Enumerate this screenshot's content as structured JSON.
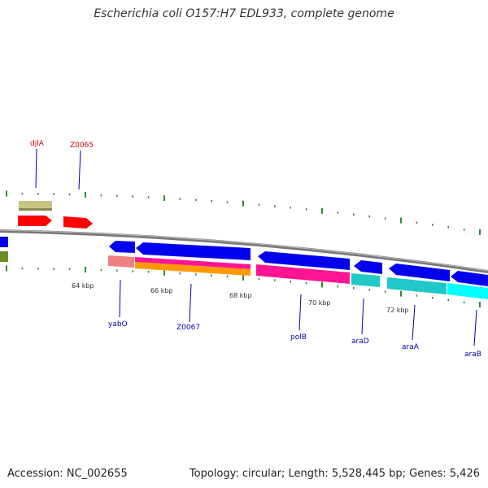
{
  "title": "Escherichia coli O157:H7 EDL933, complete genome",
  "footer": {
    "accession": "Accession: NC_002655",
    "summary": "Topology: circular; Length: 5,528,445 bp; Genes: 5,426"
  },
  "colors": {
    "backbone": "#808080",
    "tick": "#2e8b2e",
    "top_label": "#cc0000",
    "bottom_label": "#0000aa",
    "red_gene": "#ff0000",
    "blue_gene": "#0000ee",
    "khaki": "#b8b56a",
    "olive": "#6b8e23",
    "pink": "#ff1493",
    "salmon": "#f08080",
    "orange": "#ff9900",
    "teal": "#20c0c0",
    "cyan": "#00ffff"
  },
  "ticks": [
    "64 kbp",
    "66 kbp",
    "68 kbp",
    "70 kbp",
    "72 kbp"
  ],
  "top_genes": [
    "djlA",
    "Z0065"
  ],
  "bottom_genes": [
    "yabO",
    "Z0067",
    "polB",
    "araD",
    "araA",
    "araB"
  ]
}
